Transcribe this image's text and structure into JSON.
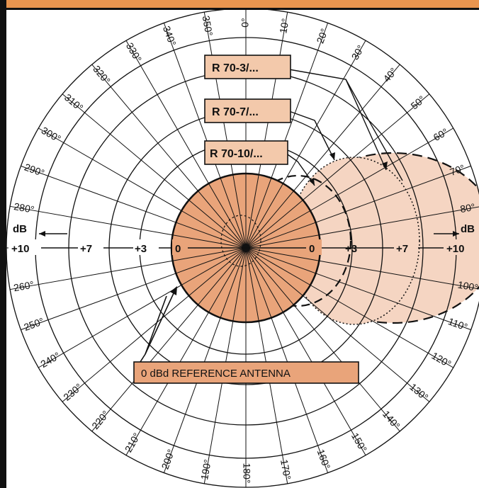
{
  "colors": {
    "reference_fill": "#e9a47a",
    "pattern_fill": "#f5d5c2",
    "label_fill": "#f3c9ab",
    "frame_accent": "#e9954f",
    "line": "#111111"
  },
  "angle_labels": [
    "0°",
    "10°",
    "20°",
    "30°",
    "40°",
    "50°",
    "60°",
    "70°",
    "80°",
    "100°",
    "110°",
    "120°",
    "130°",
    "140°",
    "150°",
    "160°",
    "170°",
    "180°",
    "190°",
    "200°",
    "210°",
    "220°",
    "230°",
    "240°",
    "250°",
    "260°",
    "280°",
    "290°",
    "300°",
    "310°",
    "320°",
    "330°",
    "340°",
    "350°"
  ],
  "angle_values": [
    0,
    10,
    20,
    30,
    40,
    50,
    60,
    70,
    80,
    100,
    110,
    120,
    130,
    140,
    150,
    160,
    170,
    180,
    190,
    200,
    210,
    220,
    230,
    240,
    250,
    260,
    280,
    290,
    300,
    310,
    320,
    330,
    340,
    350
  ],
  "scale": {
    "unit_left": "dB",
    "unit_right": "dB",
    "left_ticks": [
      "+10",
      "+7",
      "+3",
      "0"
    ],
    "right_ticks": [
      "0",
      "+3",
      "+7",
      "+10"
    ]
  },
  "antenna_labels": {
    "r70_3": "R 70-3/...",
    "r70_7": "R 70-7/...",
    "r70_10": "R 70-10/..."
  },
  "reference_label": "0 dBd REFERENCE ANTENNA"
}
